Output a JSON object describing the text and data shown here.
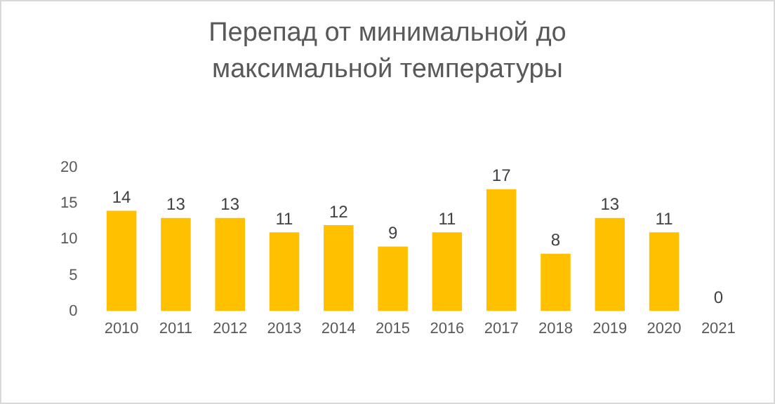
{
  "chart_data": {
    "type": "bar",
    "title": "Перепад от минимальной до максимальной температуры",
    "categories": [
      "2010",
      "2011",
      "2012",
      "2013",
      "2014",
      "2015",
      "2016",
      "2017",
      "2018",
      "2019",
      "2020",
      "2021"
    ],
    "values": [
      14,
      13,
      13,
      11,
      12,
      9,
      11,
      17,
      8,
      13,
      11,
      0
    ],
    "color": "#ffc000",
    "ylim": [
      0,
      20
    ],
    "yticks": [
      0,
      5,
      10,
      15,
      20
    ],
    "grid": false,
    "legend": false,
    "data_labels": true
  }
}
